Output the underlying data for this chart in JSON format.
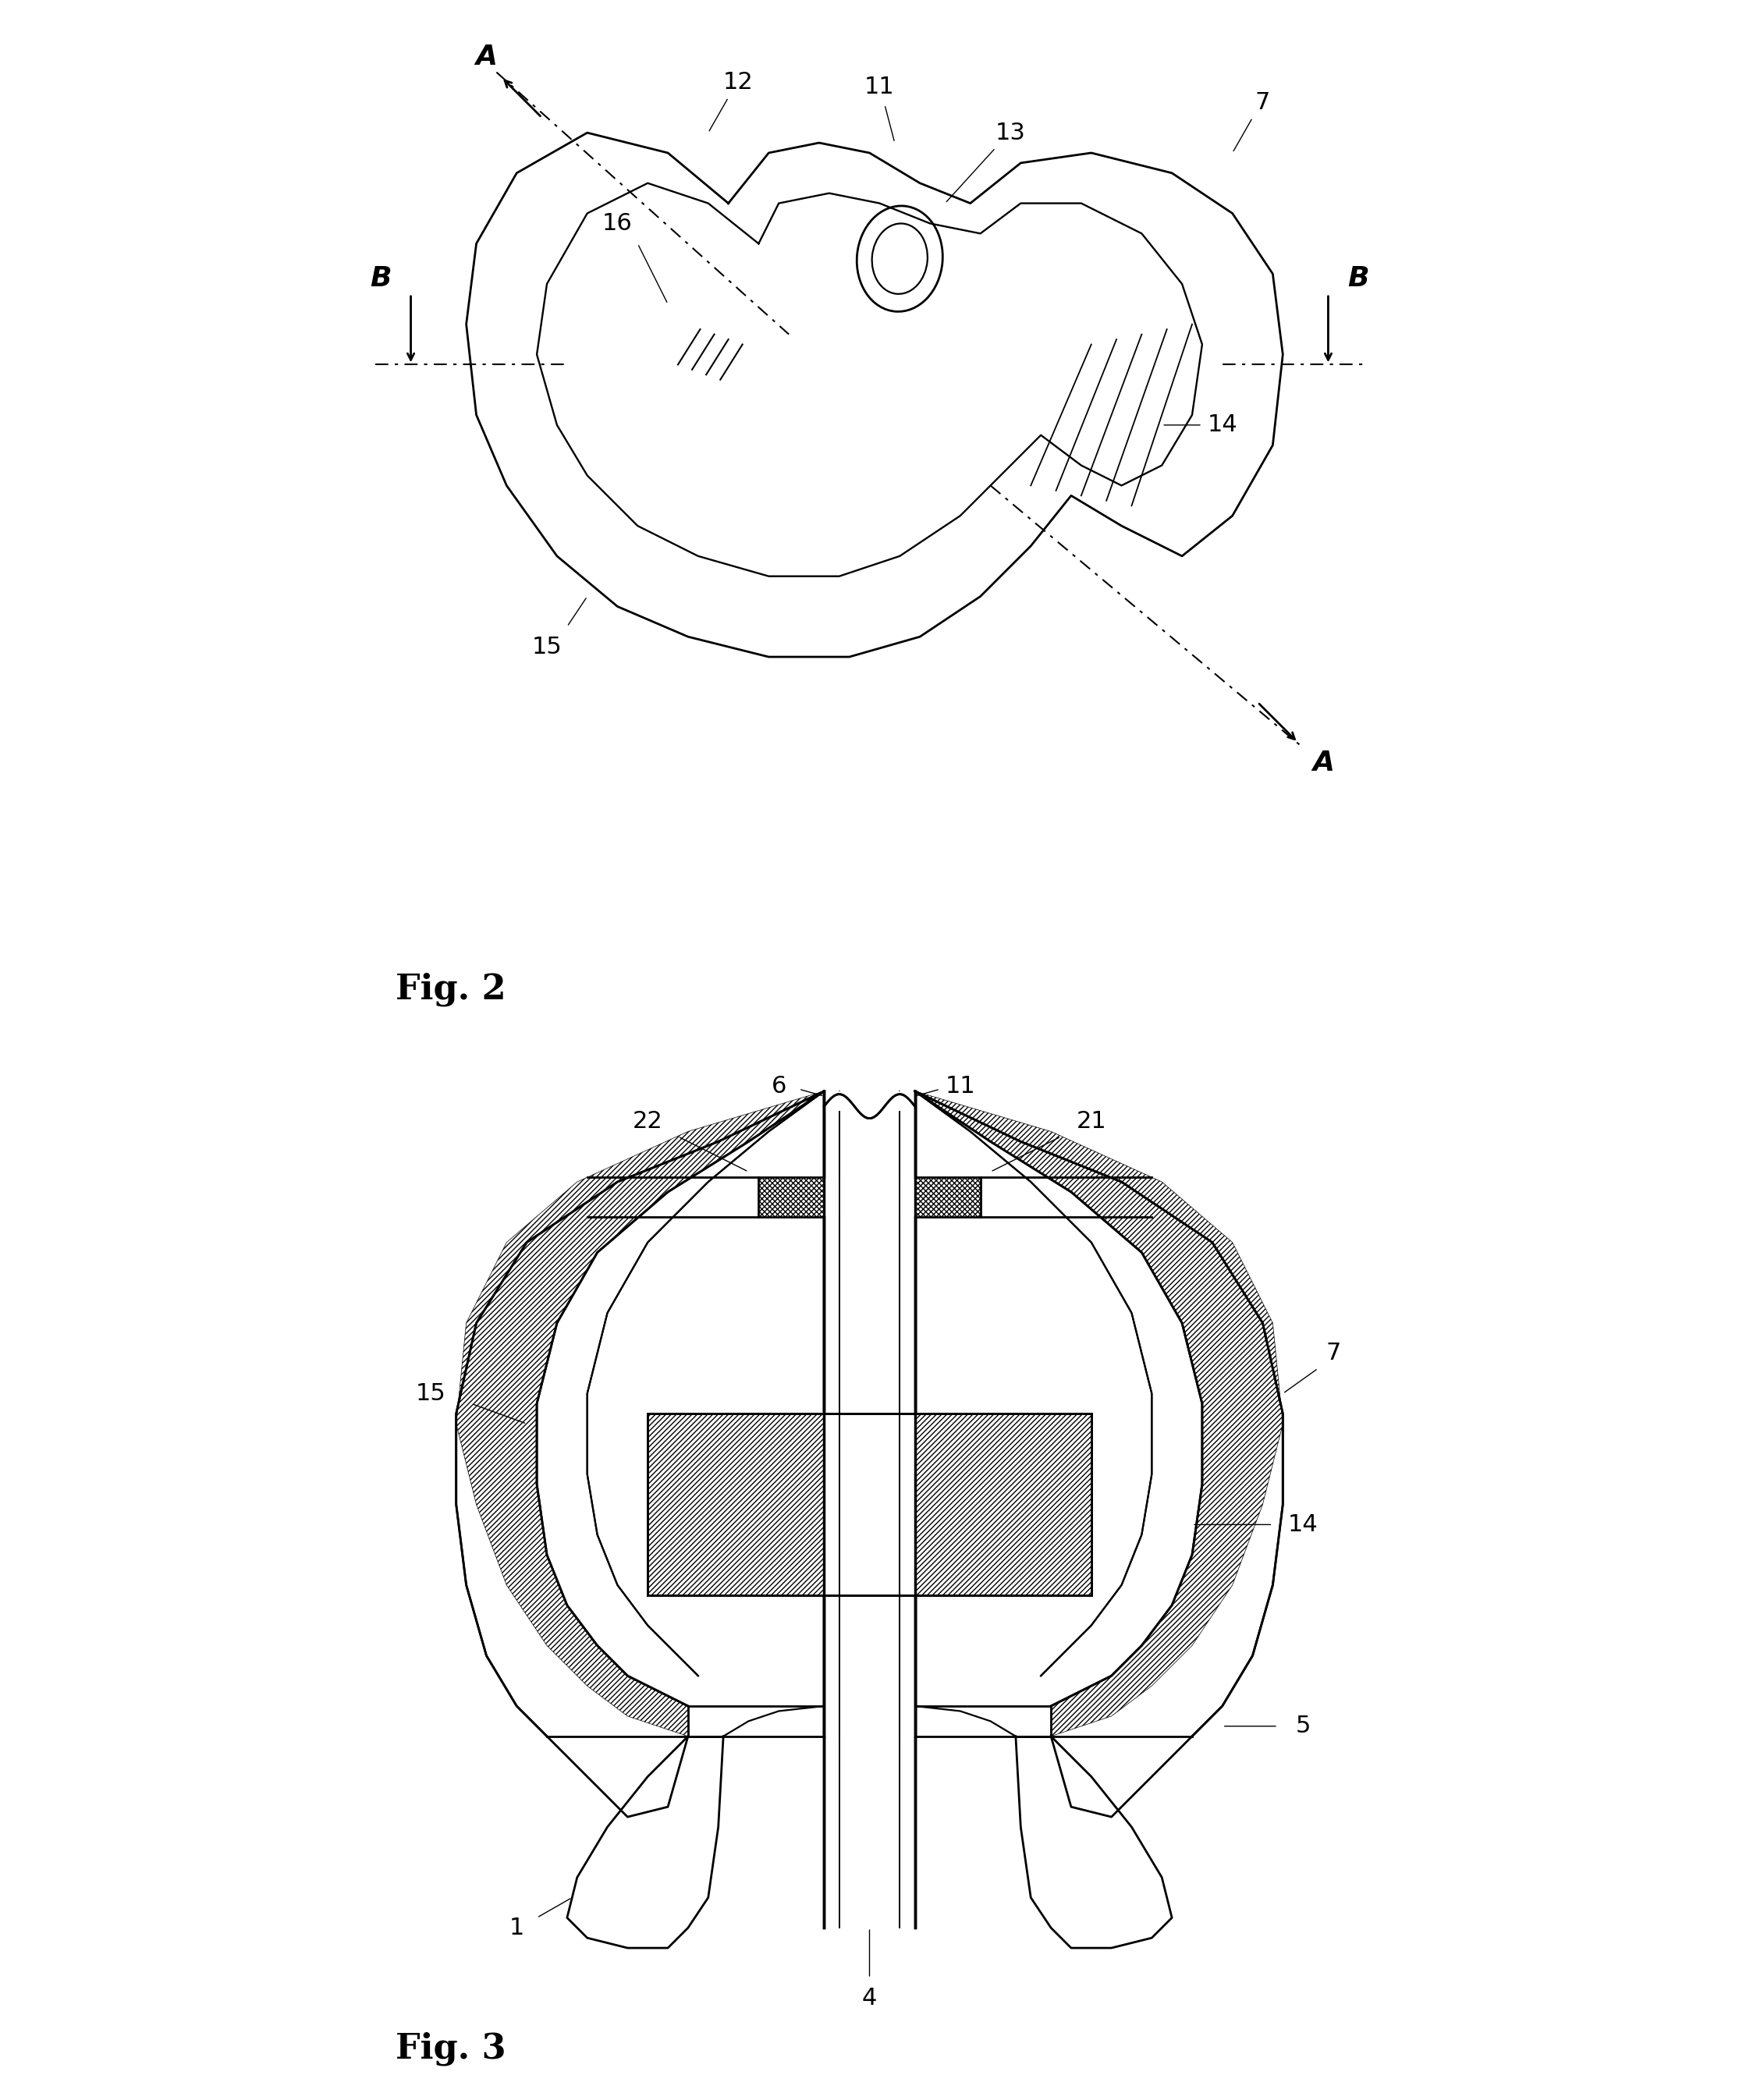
{
  "fig2_labels": {
    "A_top": "A",
    "A_bottom": "A",
    "B_left": "B",
    "B_right": "B",
    "n7": "7",
    "n11": "11",
    "n12": "12",
    "n13": "13",
    "n14": "14",
    "n15": "15",
    "n16": "16"
  },
  "fig3_labels": {
    "n1": "1",
    "n4": "4",
    "n5": "5",
    "n6": "6",
    "n7": "7",
    "n11": "11",
    "n14": "14",
    "n15": "15",
    "n21": "21",
    "n22": "22"
  },
  "fig_labels": {
    "fig2": "Fig. 2",
    "fig3": "Fig. 3"
  },
  "bg_color": "#ffffff",
  "line_color": "#000000",
  "label_fontsize": 22,
  "fig_label_fontsize": 32
}
